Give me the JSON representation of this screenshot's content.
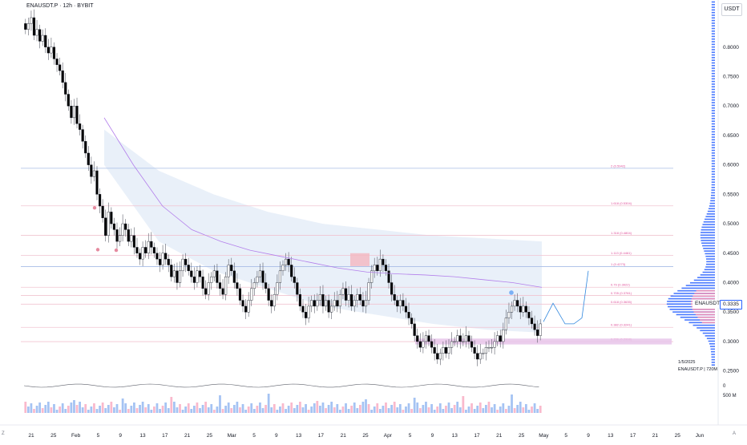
{
  "header": {
    "title": "ENAUSDT.P · 12h · BYBIT",
    "unit": "USDT"
  },
  "corner_labels": {
    "left": "Z",
    "right": "A"
  },
  "notes": {
    "date": "1/5/2025",
    "symbol": "ENAUSDT.P | 720M",
    "vol_zero": "0",
    "vol_500": "500 M"
  },
  "price_tag": {
    "symbol": "ENAUSDT.P",
    "value": "0.3335"
  },
  "colors": {
    "bull": "#ffffff",
    "bear": "#000000",
    "wick": "#5d606b",
    "ma": "#b37feb",
    "band": "#e3ecf7",
    "fib_line": "#f1c4d1",
    "fib_blue": "#a7bde6",
    "projection": "#2e86de",
    "zone": "#e8c6ea",
    "zone_red": "#f4b6bf",
    "vol_blue": "#8fb4f0",
    "vol_pink": "#f7a8bf",
    "vp_blue": "#2962ff",
    "vp_pink": "#f48fb1"
  },
  "chart_data": {
    "type": "candlestick",
    "title": "ENAUSDT.P · 12h · BYBIT",
    "ylabel": "USDT",
    "ylim": [
      0.24,
      0.88
    ],
    "y_ticks": [
      "0.8000",
      "0.7500",
      "0.7000",
      "0.6500",
      "0.6000",
      "0.5500",
      "0.5000",
      "0.4500",
      "0.4000",
      "0.3500",
      "0.3000",
      "0.2500"
    ],
    "x_ticks": [
      "21",
      "25",
      "Feb",
      "5",
      "9",
      "13",
      "17",
      "21",
      "25",
      "Mar",
      "5",
      "9",
      "13",
      "17",
      "21",
      "25",
      "Apr",
      "5",
      "9",
      "13",
      "17",
      "21",
      "25",
      "May",
      "5",
      "9",
      "13",
      "17",
      "21",
      "25",
      "Jun"
    ],
    "fib_levels": [
      {
        "label": "2 (0.5942)",
        "value": 0.5942
      },
      {
        "label": "1.618 (0.5304)",
        "value": 0.5304
      },
      {
        "label": "1.318 (0.4804)",
        "value": 0.4804
      },
      {
        "label": "1.113 (0.4461)",
        "value": 0.4461
      },
      {
        "label": "1 (0.4273)",
        "value": 0.4273
      },
      {
        "label": "0.79 (0.3922)",
        "value": 0.3922
      },
      {
        "label": "0.705 (0.3781)",
        "value": 0.3781
      },
      {
        "label": "0.618 (0.3635)",
        "value": 0.3635
      },
      {
        "label": "0.382 (0.3241)",
        "value": 0.3241
      },
      {
        "label": "0.236 (0.2998)",
        "value": 0.2998
      }
    ],
    "series": [
      {
        "name": "ENAUSDT.P",
        "closes": [
          0.83,
          0.84,
          0.85,
          0.82,
          0.83,
          0.81,
          0.82,
          0.8,
          0.79,
          0.8,
          0.78,
          0.77,
          0.76,
          0.74,
          0.72,
          0.7,
          0.68,
          0.7,
          0.67,
          0.66,
          0.64,
          0.62,
          0.6,
          0.58,
          0.59,
          0.55,
          0.53,
          0.51,
          0.48,
          0.52,
          0.5,
          0.49,
          0.47,
          0.48,
          0.5,
          0.49,
          0.47,
          0.48,
          0.46,
          0.45,
          0.44,
          0.46,
          0.45,
          0.47,
          0.46,
          0.45,
          0.44,
          0.43,
          0.45,
          0.44,
          0.43,
          0.41,
          0.42,
          0.4,
          0.42,
          0.44,
          0.43,
          0.42,
          0.41,
          0.4,
          0.42,
          0.41,
          0.39,
          0.38,
          0.4,
          0.41,
          0.42,
          0.4,
          0.39,
          0.38,
          0.41,
          0.43,
          0.42,
          0.4,
          0.39,
          0.37,
          0.36,
          0.35,
          0.37,
          0.39,
          0.4,
          0.41,
          0.42,
          0.4,
          0.39,
          0.37,
          0.36,
          0.38,
          0.4,
          0.42,
          0.43,
          0.44,
          0.43,
          0.41,
          0.4,
          0.38,
          0.36,
          0.35,
          0.34,
          0.36,
          0.37,
          0.36,
          0.37,
          0.38,
          0.36,
          0.37,
          0.35,
          0.36,
          0.37,
          0.36,
          0.38,
          0.39,
          0.37,
          0.38,
          0.36,
          0.37,
          0.38,
          0.37,
          0.36,
          0.37,
          0.4,
          0.42,
          0.43,
          0.42,
          0.44,
          0.43,
          0.42,
          0.4,
          0.38,
          0.37,
          0.36,
          0.37,
          0.36,
          0.35,
          0.34,
          0.33,
          0.31,
          0.3,
          0.29,
          0.3,
          0.31,
          0.3,
          0.29,
          0.28,
          0.27,
          0.28,
          0.29,
          0.28,
          0.29,
          0.3,
          0.3,
          0.31,
          0.3,
          0.3,
          0.31,
          0.3,
          0.29,
          0.28,
          0.27,
          0.28,
          0.28,
          0.29,
          0.29,
          0.29,
          0.3,
          0.31,
          0.3,
          0.32,
          0.34,
          0.35,
          0.36,
          0.37,
          0.36,
          0.35,
          0.36,
          0.35,
          0.34,
          0.33,
          0.32,
          0.31,
          0.33
        ]
      },
      {
        "name": "moving_average",
        "values": [
          0.68,
          0.6,
          0.53,
          0.49,
          0.47,
          0.455,
          0.445,
          0.435,
          0.425,
          0.418,
          0.415,
          0.413,
          0.41,
          0.405,
          0.4,
          0.392
        ]
      },
      {
        "name": "projection",
        "values": [
          0.3335,
          0.365,
          0.33,
          0.33,
          0.34,
          0.42
        ]
      }
    ],
    "volume_profile": "horizontal histogram concentrated around 0.35–0.37",
    "grid": false,
    "legend": "none"
  }
}
